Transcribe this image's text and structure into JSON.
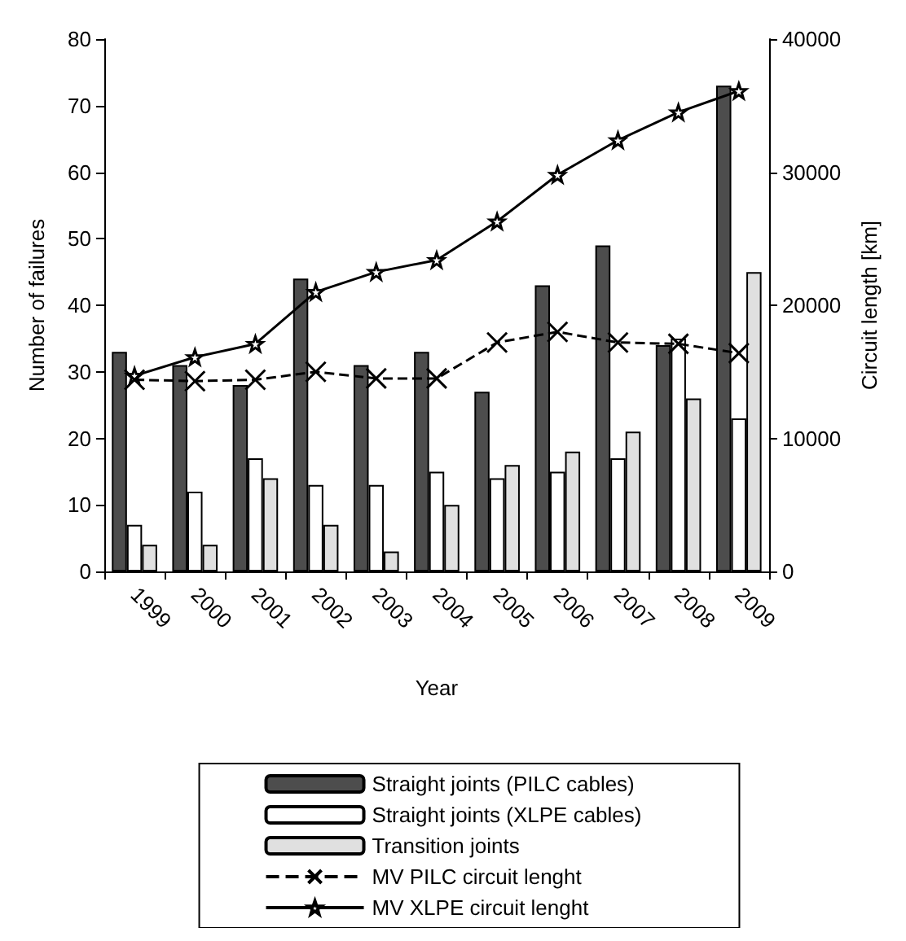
{
  "chart_data": {
    "type": "bar",
    "xlabel": "Year",
    "ylabel": "Number of failures",
    "y2label": "Circuit length [km]",
    "categories": [
      "1999",
      "2000",
      "2001",
      "2002",
      "2003",
      "2004",
      "2005",
      "2006",
      "2007",
      "2008",
      "2009"
    ],
    "series": [
      {
        "name": "Straight joints (PILC cables)",
        "color": "#4d4d4d",
        "values": [
          33,
          31,
          28,
          44,
          31,
          33,
          27,
          43,
          49,
          34,
          73
        ]
      },
      {
        "name": "Straight joints (XLPE cables)",
        "color": "#ffffff",
        "values": [
          7,
          12,
          17,
          13,
          13,
          15,
          14,
          15,
          17,
          35,
          23
        ]
      },
      {
        "name": "Transition joints",
        "color": "#e0e0e0",
        "values": [
          4,
          4,
          14,
          7,
          3,
          10,
          16,
          18,
          21,
          26,
          45
        ]
      },
      {
        "name": "MV PILC circuit lenght",
        "type": "line",
        "axis": "y2",
        "color": "#000000",
        "marker": "cross",
        "line_style": "dashed",
        "values": [
          14400,
          14300,
          14400,
          15000,
          14500,
          14500,
          17200,
          18000,
          17200,
          17100,
          16400
        ]
      },
      {
        "name": "MV XLPE circuit lenght",
        "type": "line",
        "axis": "y2",
        "color": "#000000",
        "marker": "star",
        "line_style": "solid",
        "values": [
          14700,
          16100,
          17100,
          21000,
          22500,
          23400,
          26300,
          29800,
          32400,
          34500,
          36100
        ]
      }
    ],
    "ylim": [
      0,
      80
    ],
    "yticks": [
      0,
      10,
      20,
      30,
      40,
      50,
      60,
      70,
      80
    ],
    "y2lim": [
      0,
      40000
    ],
    "y2ticks": [
      0,
      10000,
      20000,
      30000,
      40000
    ],
    "grid": false,
    "legend": "bottom"
  }
}
